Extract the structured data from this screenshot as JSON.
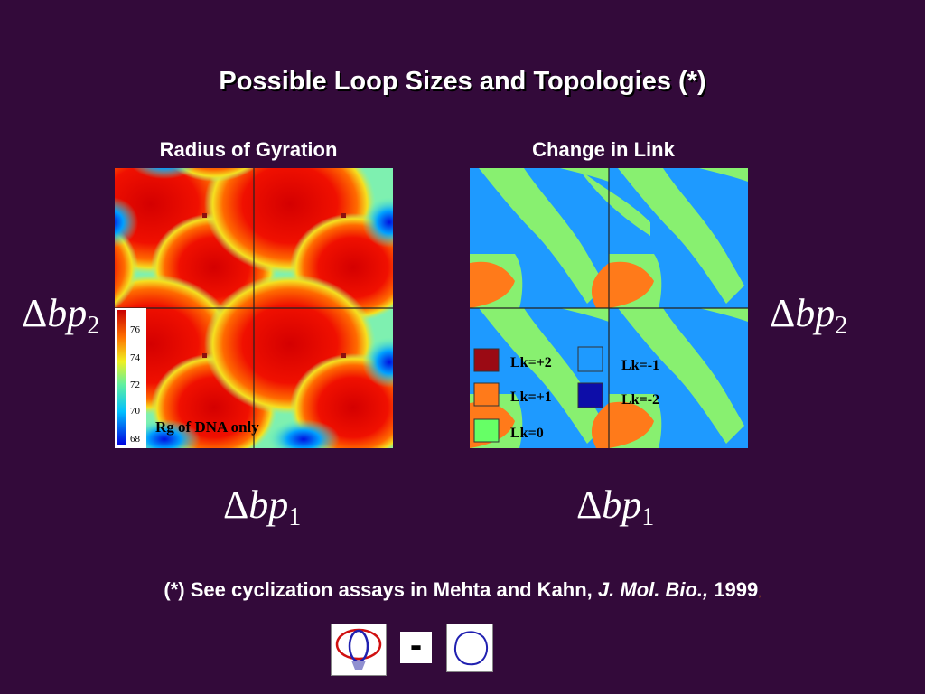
{
  "slide": {
    "title": "Possible Loop Sizes and Topologies (*)",
    "left_panel_title": "Radius of Gyration",
    "right_panel_title": "Change in Link",
    "axis_symbol": "Δ",
    "axis_var": "bp",
    "axis_x_sub": "1",
    "axis_y_sub": "2"
  },
  "heatmap_rg": {
    "colorbar_ticks": [
      "76",
      "74",
      "72",
      "70",
      "68"
    ],
    "label": "Rg of DNA only",
    "colors": [
      "#0000e0",
      "#00c0ff",
      "#60f0a0",
      "#f0f020",
      "#ff7000",
      "#e00000"
    ]
  },
  "heatmap_lk": {
    "legend": [
      {
        "label": "Lk=+2",
        "color": "#9b0a14"
      },
      {
        "label": "Lk=+1",
        "color": "#ff7a1a"
      },
      {
        "label": "Lk=0",
        "color": "#66ff66"
      },
      {
        "label": "Lk=-1",
        "color": "#1e9aff"
      },
      {
        "label": "Lk=-2",
        "color": "#0d0da8"
      }
    ],
    "colors": {
      "background": "#1e9aff",
      "band": "#88f070",
      "lobe": "#ff7a1a"
    }
  },
  "footnote": {
    "prefix": "(*) See cyclization assays in Mehta and Kahn, ",
    "journal": "J. Mol. Bio.,",
    "year": " 1999",
    "trailing_mark": ","
  },
  "bottom": {
    "minus": "-"
  }
}
